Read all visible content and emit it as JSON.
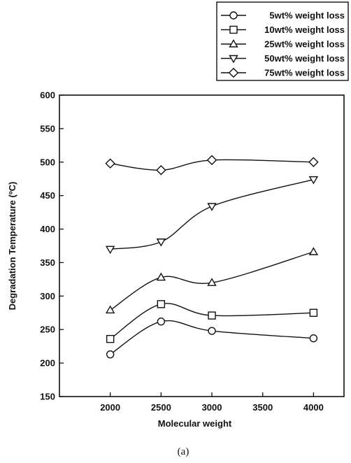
{
  "chart_data": {
    "type": "line",
    "xlabel": "Molecular weight",
    "ylabel": "Degradation Temperature (ºC)",
    "caption": "(a)",
    "x": [
      2000,
      2500,
      3000,
      4000
    ],
    "xticks": [
      2000,
      2500,
      3000,
      3500,
      4000
    ],
    "yticks": [
      150,
      200,
      250,
      300,
      350,
      400,
      450,
      500,
      550,
      600
    ],
    "xlim": [
      1500,
      4300
    ],
    "ylim": [
      150,
      600
    ],
    "grid": false,
    "legend_position": "top-right",
    "series": [
      {
        "name": "5wt% weight loss",
        "marker": "circle",
        "values": [
          213,
          262,
          248,
          237
        ]
      },
      {
        "name": "10wt% weight loss",
        "marker": "square",
        "values": [
          236,
          288,
          271,
          275
        ]
      },
      {
        "name": "25wt% weight loss",
        "marker": "triangle-up",
        "values": [
          279,
          328,
          320,
          366
        ]
      },
      {
        "name": "50wt% weight loss",
        "marker": "triangle-down",
        "values": [
          370,
          381,
          434,
          474
        ]
      },
      {
        "name": "75wt% weight loss",
        "marker": "diamond",
        "values": [
          498,
          488,
          503,
          500
        ]
      }
    ]
  }
}
